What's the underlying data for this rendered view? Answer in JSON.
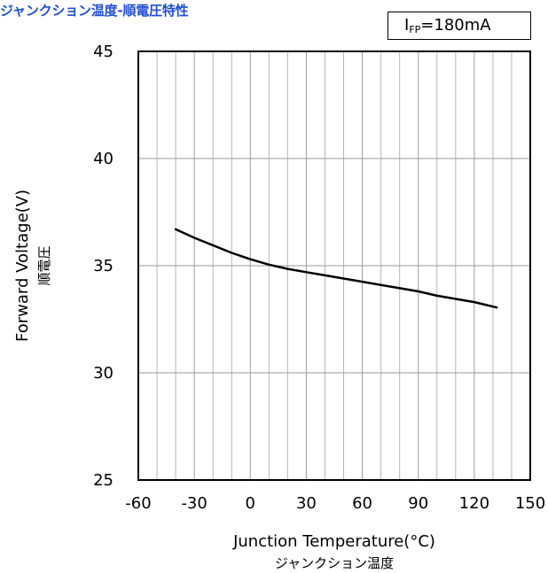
{
  "title": "ジャンクション温度-順電圧特性",
  "title_color": "#1f4fd1",
  "condition": {
    "symbol": "I",
    "subscript": "FP",
    "value": "=180mA"
  },
  "chart_data": {
    "type": "line",
    "title": "ジャンクション温度-順電圧特性",
    "xlabel": "Junction Temperature(°C)",
    "xlabel_ja": "ジャンクション温度",
    "ylabel": "Forward Voltage(V)",
    "ylabel_ja": "順電圧",
    "xlim": [
      -60,
      150
    ],
    "ylim": [
      25,
      45
    ],
    "xticks": [
      -60,
      -30,
      0,
      30,
      60,
      90,
      120,
      150
    ],
    "yticks": [
      25,
      30,
      35,
      40,
      45
    ],
    "x_minor_step": 10,
    "y_minor_step": 1,
    "grid": true,
    "line_color": "#000000",
    "series": [
      {
        "x": [
          -40,
          -30,
          -20,
          -10,
          0,
          10,
          20,
          30,
          40,
          50,
          60,
          70,
          80,
          90,
          100,
          110,
          120,
          132
        ],
        "y": [
          36.7,
          36.3,
          35.95,
          35.6,
          35.3,
          35.05,
          34.85,
          34.7,
          34.55,
          34.4,
          34.25,
          34.1,
          33.95,
          33.8,
          33.6,
          33.45,
          33.3,
          33.05
        ]
      }
    ]
  }
}
